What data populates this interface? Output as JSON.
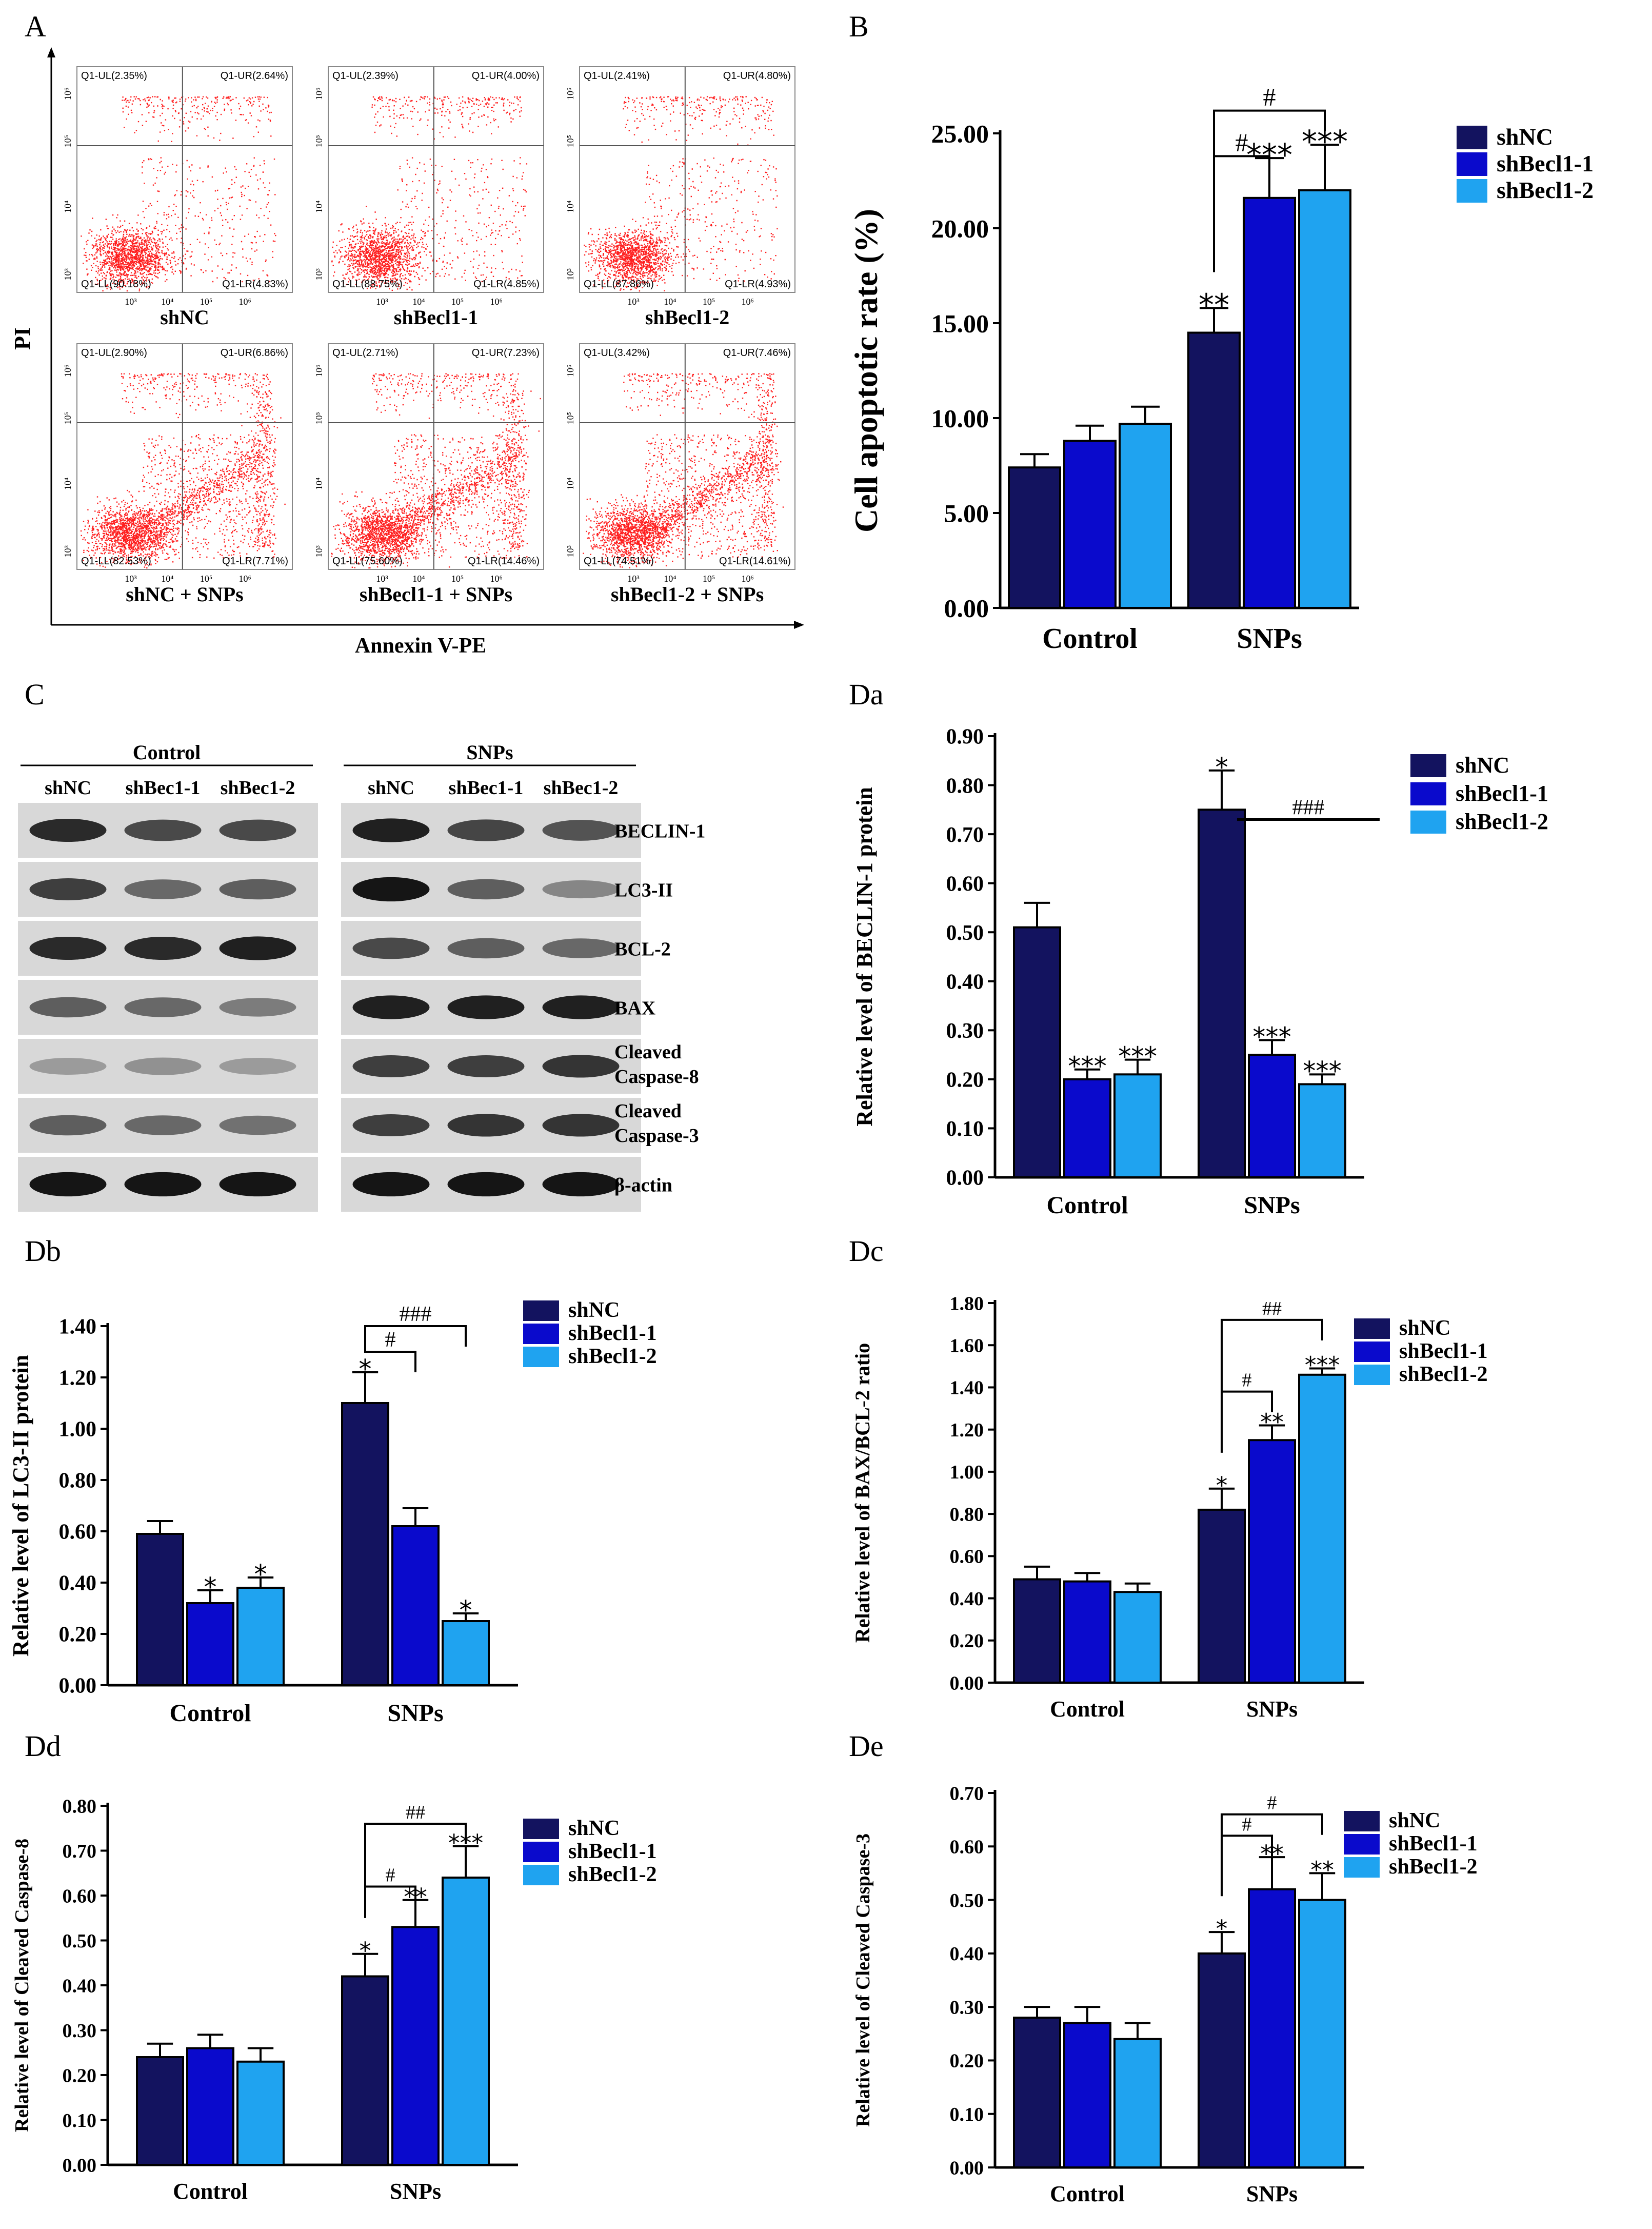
{
  "colors": {
    "shNC": "#13135f",
    "shBecl1_1": "#0a0acc",
    "shBecl1_2": "#1fa3f0",
    "dot": "#ff1f1f"
  },
  "panel_labels": [
    "A",
    "B",
    "C",
    "Da",
    "Db",
    "Dc",
    "Dd",
    "De"
  ],
  "flow": {
    "y_label": "PI",
    "x_label": "Annexin V-PE",
    "plots": [
      {
        "name": "shNC",
        "ul": "Q1-UL(2.35%)",
        "ur": "Q1-UR(2.64%)",
        "ll": "Q1-LL(90.18%)",
        "lr": "Q1-LR(4.83%)"
      },
      {
        "name": "shBecl1-1",
        "ul": "Q1-UL(2.39%)",
        "ur": "Q1-UR(4.00%)",
        "ll": "Q1-LL(88.75%)",
        "lr": "Q1-LR(4.85%)"
      },
      {
        "name": "shBecl1-2",
        "ul": "Q1-UL(2.41%)",
        "ur": "Q1-UR(4.80%)",
        "ll": "Q1-LL(87.86%)",
        "lr": "Q1-LR(4.93%)"
      },
      {
        "name": "shNC + SNPs",
        "ul": "Q1-UL(2.90%)",
        "ur": "Q1-UR(6.86%)",
        "ll": "Q1-LL(82.53%)",
        "lr": "Q1-LR(7.71%)"
      },
      {
        "name": "shBecl1-1 + SNPs",
        "ul": "Q1-UL(2.71%)",
        "ur": "Q1-UR(7.23%)",
        "ll": "Q1-LL(75.60%)",
        "lr": "Q1-LR(14.46%)"
      },
      {
        "name": "shBecl1-2 + SNPs",
        "ul": "Q1-UL(3.42%)",
        "ur": "Q1-UR(7.46%)",
        "ll": "Q1-LL(74.51%)",
        "lr": "Q1-LR(14.61%)"
      }
    ],
    "ticks_x": [
      "10³",
      "10⁴",
      "10⁵",
      "10⁶"
    ],
    "ticks_y": [
      "10³",
      "10⁴",
      "10⁵",
      "10⁶"
    ]
  },
  "blot": {
    "groups": [
      "Control",
      "SNPs"
    ],
    "lanes": [
      "shNC",
      "shBec1-1",
      "shBec1-2",
      "shNC",
      "shBec1-1",
      "shBec1-2"
    ],
    "rows": [
      {
        "label": "BECLIN-1",
        "intensity": [
          0.85,
          0.7,
          0.7,
          0.9,
          0.72,
          0.65
        ]
      },
      {
        "label": "LC3-II",
        "intensity": [
          0.75,
          0.55,
          0.6,
          0.95,
          0.6,
          0.4
        ]
      },
      {
        "label": "BCL-2",
        "intensity": [
          0.85,
          0.85,
          0.9,
          0.7,
          0.6,
          0.55
        ]
      },
      {
        "label": "BAX",
        "intensity": [
          0.6,
          0.55,
          0.45,
          0.9,
          0.9,
          0.9
        ]
      },
      {
        "label": "Cleaved\nCaspase-8",
        "intensity": [
          0.3,
          0.35,
          0.3,
          0.75,
          0.75,
          0.8
        ]
      },
      {
        "label": "Cleaved\nCaspase-3",
        "intensity": [
          0.6,
          0.55,
          0.5,
          0.75,
          0.8,
          0.8
        ]
      },
      {
        "label": "β-actin",
        "intensity": [
          0.95,
          0.95,
          0.95,
          0.95,
          0.95,
          0.95
        ]
      }
    ]
  },
  "chart_data": [
    {
      "id": "B",
      "type": "bar",
      "ylabel": "Cell apoptotic rate (%)",
      "categories": [
        "Control",
        "SNPs"
      ],
      "ylim": [
        0,
        25
      ],
      "yticks": [
        "0.00",
        "5.00",
        "10.00",
        "15.00",
        "20.00",
        "25.00"
      ],
      "series": [
        {
          "name": "shNC",
          "values": [
            7.4,
            14.5
          ],
          "err": [
            0.7,
            1.3
          ],
          "sig": [
            "",
            "**"
          ]
        },
        {
          "name": "shBecl1-1",
          "values": [
            8.8,
            21.6
          ],
          "err": [
            0.8,
            2.1
          ],
          "sig": [
            "",
            "***"
          ]
        },
        {
          "name": "shBecl1-2",
          "values": [
            9.7,
            22.0
          ],
          "err": [
            0.9,
            2.4
          ],
          "sig": [
            "",
            "***"
          ]
        }
      ],
      "brackets": [
        {
          "text": "#",
          "to": 1,
          "y": 23.8
        },
        {
          "text": "#",
          "to": 2,
          "y": 26.2
        }
      ]
    },
    {
      "id": "Da",
      "type": "bar",
      "ylabel": "Relative level of BECLIN-1 protein",
      "categories": [
        "Control",
        "SNPs"
      ],
      "ylim": [
        0,
        0.9
      ],
      "yticks": [
        "0.00",
        "0.10",
        "0.20",
        "0.30",
        "0.40",
        "0.50",
        "0.60",
        "0.70",
        "0.80",
        "0.90"
      ],
      "series": [
        {
          "name": "shNC",
          "values": [
            0.51,
            0.75
          ],
          "err": [
            0.05,
            0.08
          ],
          "sig": [
            "",
            "*"
          ]
        },
        {
          "name": "shBecl1-1",
          "values": [
            0.2,
            0.25
          ],
          "err": [
            0.02,
            0.03
          ],
          "sig": [
            "***",
            "***"
          ]
        },
        {
          "name": "shBecl1-2",
          "values": [
            0.21,
            0.19
          ],
          "err": [
            0.03,
            0.02
          ],
          "sig": [
            "***",
            "***"
          ]
        }
      ],
      "hline": {
        "text": "###",
        "y": 0.73
      }
    },
    {
      "id": "Db",
      "type": "bar",
      "ylabel": "Relative level of LC3-II protein",
      "categories": [
        "Control",
        "SNPs"
      ],
      "ylim": [
        0,
        1.4
      ],
      "yticks": [
        "0.00",
        "0.20",
        "0.40",
        "0.60",
        "0.80",
        "1.00",
        "1.20",
        "1.40"
      ],
      "series": [
        {
          "name": "shNC",
          "values": [
            0.59,
            1.1
          ],
          "err": [
            0.05,
            0.12
          ],
          "sig": [
            "",
            "*"
          ]
        },
        {
          "name": "shBecl1-1",
          "values": [
            0.32,
            0.62
          ],
          "err": [
            0.05,
            0.07
          ],
          "sig": [
            "*",
            ""
          ]
        },
        {
          "name": "shBecl1-2",
          "values": [
            0.38,
            0.25
          ],
          "err": [
            0.04,
            0.03
          ],
          "sig": [
            "*",
            "*"
          ]
        }
      ],
      "brackets": [
        {
          "text": "#",
          "to": 1,
          "y": 1.3
        },
        {
          "text": "###",
          "to": 2,
          "y": 1.4
        }
      ]
    },
    {
      "id": "Dc",
      "type": "bar",
      "ylabel": "Relative level of BAX/BCL-2 ratio",
      "categories": [
        "Control",
        "SNPs"
      ],
      "ylim": [
        0,
        1.8
      ],
      "yticks": [
        "0.00",
        "0.20",
        "0.40",
        "0.60",
        "0.80",
        "1.00",
        "1.20",
        "1.40",
        "1.60",
        "1.80"
      ],
      "series": [
        {
          "name": "shNC",
          "values": [
            0.49,
            0.82
          ],
          "err": [
            0.06,
            0.1
          ],
          "sig": [
            "",
            "*"
          ]
        },
        {
          "name": "shBecl1-1",
          "values": [
            0.48,
            1.15
          ],
          "err": [
            0.04,
            0.07
          ],
          "sig": [
            "",
            "**"
          ]
        },
        {
          "name": "shBecl1-2",
          "values": [
            0.43,
            1.46
          ],
          "err": [
            0.04,
            0.03
          ],
          "sig": [
            "",
            "***"
          ]
        }
      ],
      "brackets": [
        {
          "text": "#",
          "to": 1,
          "y": 1.38
        },
        {
          "text": "##",
          "to": 2,
          "y": 1.72
        }
      ]
    },
    {
      "id": "Dd",
      "type": "bar",
      "ylabel": "Relative level of Cleaved Caspase-8",
      "categories": [
        "Control",
        "SNPs"
      ],
      "ylim": [
        0,
        0.8
      ],
      "yticks": [
        "0.00",
        "0.10",
        "0.20",
        "0.30",
        "0.40",
        "0.50",
        "0.60",
        "0.70",
        "0.80"
      ],
      "series": [
        {
          "name": "shNC",
          "values": [
            0.24,
            0.42
          ],
          "err": [
            0.03,
            0.05
          ],
          "sig": [
            "",
            "*"
          ]
        },
        {
          "name": "shBecl1-1",
          "values": [
            0.26,
            0.53
          ],
          "err": [
            0.03,
            0.06
          ],
          "sig": [
            "",
            "**"
          ]
        },
        {
          "name": "shBecl1-2",
          "values": [
            0.23,
            0.64
          ],
          "err": [
            0.03,
            0.07
          ],
          "sig": [
            "",
            "***"
          ]
        }
      ],
      "brackets": [
        {
          "text": "#",
          "to": 1,
          "y": 0.62
        },
        {
          "text": "##",
          "to": 2,
          "y": 0.76
        }
      ]
    },
    {
      "id": "De",
      "type": "bar",
      "ylabel": "Relative level of Cleaved Caspase-3",
      "categories": [
        "Control",
        "SNPs"
      ],
      "ylim": [
        0,
        0.7
      ],
      "yticks": [
        "0.00",
        "0.10",
        "0.20",
        "0.30",
        "0.40",
        "0.50",
        "0.60",
        "0.70"
      ],
      "series": [
        {
          "name": "shNC",
          "values": [
            0.28,
            0.4
          ],
          "err": [
            0.02,
            0.04
          ],
          "sig": [
            "",
            "*"
          ]
        },
        {
          "name": "shBecl1-1",
          "values": [
            0.27,
            0.52
          ],
          "err": [
            0.03,
            0.06
          ],
          "sig": [
            "",
            "**"
          ]
        },
        {
          "name": "shBecl1-2",
          "values": [
            0.24,
            0.5
          ],
          "err": [
            0.03,
            0.05
          ],
          "sig": [
            "",
            "**"
          ]
        }
      ],
      "brackets": [
        {
          "text": "#",
          "to": 1,
          "y": 0.62
        },
        {
          "text": "#",
          "to": 2,
          "y": 0.66
        }
      ]
    }
  ]
}
